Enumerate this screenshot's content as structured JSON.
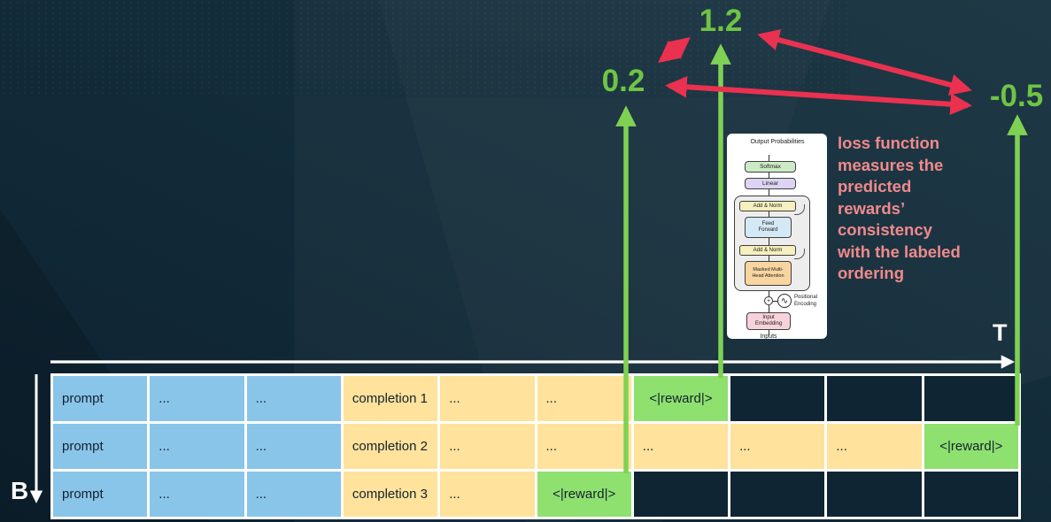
{
  "colors": {
    "background": "#132c39",
    "cell_blue": "#89c5e9",
    "cell_yellow": "#ffe29b",
    "cell_green": "#8ee06f",
    "green_accent": "#6fc444",
    "red_accent": "#ea3150",
    "annotation_pink": "#f08a8c",
    "axis_white": "#ffffff"
  },
  "axes": {
    "t": "T",
    "b": "B"
  },
  "rewards": [
    {
      "value": "0.2",
      "from_row": 3
    },
    {
      "value": "1.2",
      "from_row": 1
    },
    {
      "value": "-0.5",
      "from_row": 2
    }
  ],
  "annotation": {
    "text": "loss function\nmeasures the\npredicted\nrewards’\nconsistency\nwith the labeled\nordering"
  },
  "transformer": {
    "output_label": "Output Probabilities",
    "softmax": "Softmax",
    "linear": "Linear",
    "add_norm_1": "Add & Norm",
    "feed_forward": "Feed Forward",
    "add_norm_2": "Add & Norm",
    "attention": "Masked Multi-Head Attention",
    "positional_encoding": "Positional Encoding",
    "input_embedding": "Input Embedding",
    "inputs": "Inputs"
  },
  "table": {
    "rows": [
      {
        "cells": [
          {
            "text": "prompt",
            "style": "blue"
          },
          {
            "text": "...",
            "style": "blue"
          },
          {
            "text": "...",
            "style": "blue"
          },
          {
            "text": "completion 1",
            "style": "yellow"
          },
          {
            "text": "...",
            "style": "yellow"
          },
          {
            "text": "...",
            "style": "yellow"
          },
          {
            "text": "<|reward|>",
            "style": "green"
          },
          {
            "text": "",
            "style": "empty"
          },
          {
            "text": "",
            "style": "empty"
          },
          {
            "text": "",
            "style": "empty"
          }
        ]
      },
      {
        "cells": [
          {
            "text": "prompt",
            "style": "blue"
          },
          {
            "text": "...",
            "style": "blue"
          },
          {
            "text": "...",
            "style": "blue"
          },
          {
            "text": "completion 2",
            "style": "yellow"
          },
          {
            "text": "...",
            "style": "yellow"
          },
          {
            "text": "...",
            "style": "yellow"
          },
          {
            "text": "...",
            "style": "yellow"
          },
          {
            "text": "...",
            "style": "yellow"
          },
          {
            "text": "...",
            "style": "yellow"
          },
          {
            "text": "<|reward|>",
            "style": "green"
          }
        ]
      },
      {
        "cells": [
          {
            "text": "prompt",
            "style": "blue"
          },
          {
            "text": "...",
            "style": "blue"
          },
          {
            "text": "...",
            "style": "blue"
          },
          {
            "text": "completion 3",
            "style": "yellow"
          },
          {
            "text": "...",
            "style": "yellow"
          },
          {
            "text": "<|reward|>",
            "style": "green"
          },
          {
            "text": "",
            "style": "empty"
          },
          {
            "text": "",
            "style": "empty"
          },
          {
            "text": "",
            "style": "empty"
          },
          {
            "text": "",
            "style": "empty"
          }
        ]
      }
    ]
  }
}
